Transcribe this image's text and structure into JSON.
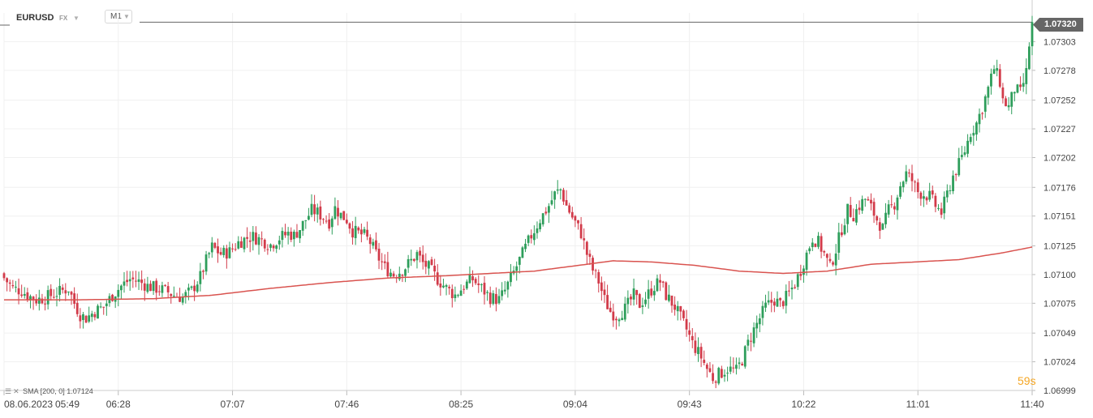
{
  "header": {
    "symbol": "EURUSD",
    "market": "FX",
    "timeframe": "M1"
  },
  "current_price": "1.07320",
  "countdown": "59s",
  "indicator": {
    "name": "SMA",
    "params": "[200, 0]",
    "value": "1.07124",
    "color": "#d9534f"
  },
  "colors": {
    "up": "#2e9e5b",
    "down": "#d23b4a",
    "grid": "#f0f0f0",
    "price_tag": "#666666",
    "sma": "#d9534f"
  },
  "chart_data": {
    "type": "candlestick",
    "y_ticks": [
      "1.07303",
      "1.07278",
      "1.07252",
      "1.07227",
      "1.07202",
      "1.07176",
      "1.07151",
      "1.07125",
      "1.07100",
      "1.07075",
      "1.07049",
      "1.07024",
      "1.06999"
    ],
    "ylim": [
      1.06999,
      1.07328
    ],
    "x_ticks": [
      "08.06.2023",
      "05:49",
      "06:28",
      "07:07",
      "07:46",
      "08:25",
      "09:04",
      "09:43",
      "10:22",
      "11:01",
      "11:40"
    ],
    "x_range_minutes": [
      349,
      700
    ],
    "grid": true,
    "close_anchors": [
      [
        349,
        1.07097
      ],
      [
        352,
        1.07088
      ],
      [
        355,
        1.07086
      ],
      [
        357,
        1.07082
      ],
      [
        360,
        1.07078
      ],
      [
        363,
        1.0708
      ],
      [
        366,
        1.07083
      ],
      [
        368,
        1.07085
      ],
      [
        371,
        1.07088
      ],
      [
        373,
        1.07075
      ],
      [
        375,
        1.07065
      ],
      [
        377,
        1.07062
      ],
      [
        380,
        1.07068
      ],
      [
        383,
        1.07072
      ],
      [
        386,
        1.07082
      ],
      [
        389,
        1.0709
      ],
      [
        392,
        1.07096
      ],
      [
        395,
        1.07094
      ],
      [
        398,
        1.0709
      ],
      [
        401,
        1.07088
      ],
      [
        404,
        1.07086
      ],
      [
        407,
        1.07082
      ],
      [
        410,
        1.0708
      ],
      [
        413,
        1.07086
      ],
      [
        416,
        1.07098
      ],
      [
        418,
        1.07112
      ],
      [
        420,
        1.07124
      ],
      [
        423,
        1.07118
      ],
      [
        426,
        1.0712
      ],
      [
        429,
        1.07128
      ],
      [
        432,
        1.07132
      ],
      [
        434,
        1.07133
      ],
      [
        437,
        1.0713
      ],
      [
        440,
        1.07126
      ],
      [
        443,
        1.07132
      ],
      [
        446,
        1.07136
      ],
      [
        448,
        1.07134
      ],
      [
        450,
        1.0714
      ],
      [
        452,
        1.07148
      ],
      [
        454,
        1.07156
      ],
      [
        456,
        1.07154
      ],
      [
        458,
        1.0715
      ],
      [
        460,
        1.07146
      ],
      [
        462,
        1.07158
      ],
      [
        464,
        1.07152
      ],
      [
        466,
        1.07148
      ],
      [
        468,
        1.07138
      ],
      [
        470,
        1.07136
      ],
      [
        472,
        1.07134
      ],
      [
        474,
        1.07128
      ],
      [
        476,
        1.07118
      ],
      [
        479,
        1.07106
      ],
      [
        482,
        1.071
      ],
      [
        485,
        1.07104
      ],
      [
        488,
        1.07112
      ],
      [
        490,
        1.07118
      ],
      [
        492,
        1.0711
      ],
      [
        494,
        1.07106
      ],
      [
        497,
        1.07096
      ],
      [
        500,
        1.07088
      ],
      [
        503,
        1.07082
      ],
      [
        506,
        1.0709
      ],
      [
        509,
        1.07096
      ],
      [
        512,
        1.07088
      ],
      [
        515,
        1.0708
      ],
      [
        518,
        1.07078
      ],
      [
        520,
        1.07086
      ],
      [
        523,
        1.07102
      ],
      [
        526,
        1.07118
      ],
      [
        529,
        1.07134
      ],
      [
        532,
        1.07148
      ],
      [
        535,
        1.0716
      ],
      [
        537,
        1.0717
      ],
      [
        539,
        1.07174
      ],
      [
        541,
        1.0716
      ],
      [
        543,
        1.0715
      ],
      [
        546,
        1.07136
      ],
      [
        548,
        1.07118
      ],
      [
        550,
        1.07104
      ],
      [
        552,
        1.07094
      ],
      [
        554,
        1.07078
      ],
      [
        556,
        1.07068
      ],
      [
        558,
        1.07064
      ],
      [
        561,
        1.0707
      ],
      [
        564,
        1.07082
      ],
      [
        566,
        1.07074
      ],
      [
        568,
        1.0708
      ],
      [
        571,
        1.0709
      ],
      [
        573,
        1.07094
      ],
      [
        575,
        1.07082
      ],
      [
        578,
        1.07072
      ],
      [
        580,
        1.07062
      ],
      [
        582,
        1.07052
      ],
      [
        584,
        1.0704
      ],
      [
        587,
        1.07028
      ],
      [
        589,
        1.07018
      ],
      [
        591,
        1.0701
      ],
      [
        593,
        1.07013
      ],
      [
        596,
        1.07018
      ],
      [
        599,
        1.07016
      ],
      [
        601,
        1.07026
      ],
      [
        603,
        1.0704
      ],
      [
        605,
        1.07052
      ],
      [
        607,
        1.07062
      ],
      [
        609,
        1.07072
      ],
      [
        612,
        1.07078
      ],
      [
        614,
        1.07074
      ],
      [
        616,
        1.0708
      ],
      [
        619,
        1.07092
      ],
      [
        621,
        1.07104
      ],
      [
        623,
        1.07118
      ],
      [
        625,
        1.07132
      ],
      [
        627,
        1.07128
      ],
      [
        629,
        1.07118
      ],
      [
        631,
        1.07106
      ],
      [
        633,
        1.07122
      ],
      [
        635,
        1.0714
      ],
      [
        637,
        1.07156
      ],
      [
        639,
        1.07152
      ],
      [
        641,
        1.0716
      ],
      [
        643,
        1.07166
      ],
      [
        645,
        1.07158
      ],
      [
        647,
        1.07148
      ],
      [
        649,
        1.0714
      ],
      [
        651,
        1.07156
      ],
      [
        653,
        1.07162
      ],
      [
        655,
        1.07178
      ],
      [
        657,
        1.07188
      ],
      [
        659,
        1.07182
      ],
      [
        661,
        1.07172
      ],
      [
        663,
        1.0717
      ],
      [
        665,
        1.07168
      ],
      [
        667,
        1.0716
      ],
      [
        669,
        1.07154
      ],
      [
        671,
        1.0717
      ],
      [
        673,
        1.07186
      ],
      [
        675,
        1.07196
      ],
      [
        677,
        1.07208
      ],
      [
        679,
        1.07224
      ],
      [
        681,
        1.07232
      ],
      [
        683,
        1.07246
      ],
      [
        685,
        1.07262
      ],
      [
        687,
        1.0728
      ],
      [
        689,
        1.07268
      ],
      [
        690,
        1.07252
      ],
      [
        692,
        1.07246
      ],
      [
        694,
        1.07262
      ],
      [
        696,
        1.07258
      ],
      [
        698,
        1.07276
      ],
      [
        699,
        1.073
      ],
      [
        700,
        1.0732
      ]
    ],
    "sma_anchors": [
      [
        349,
        1.07078
      ],
      [
        375,
        1.07078
      ],
      [
        400,
        1.07079
      ],
      [
        420,
        1.07082
      ],
      [
        440,
        1.07088
      ],
      [
        460,
        1.07093
      ],
      [
        480,
        1.07097
      ],
      [
        500,
        1.07099
      ],
      [
        515,
        1.07101
      ],
      [
        530,
        1.07103
      ],
      [
        545,
        1.07108
      ],
      [
        557,
        1.07112
      ],
      [
        570,
        1.07111
      ],
      [
        585,
        1.07108
      ],
      [
        600,
        1.07103
      ],
      [
        615,
        1.07101
      ],
      [
        630,
        1.07103
      ],
      [
        645,
        1.07109
      ],
      [
        660,
        1.07111
      ],
      [
        675,
        1.07113
      ],
      [
        690,
        1.07119
      ],
      [
        700,
        1.07124
      ]
    ]
  }
}
